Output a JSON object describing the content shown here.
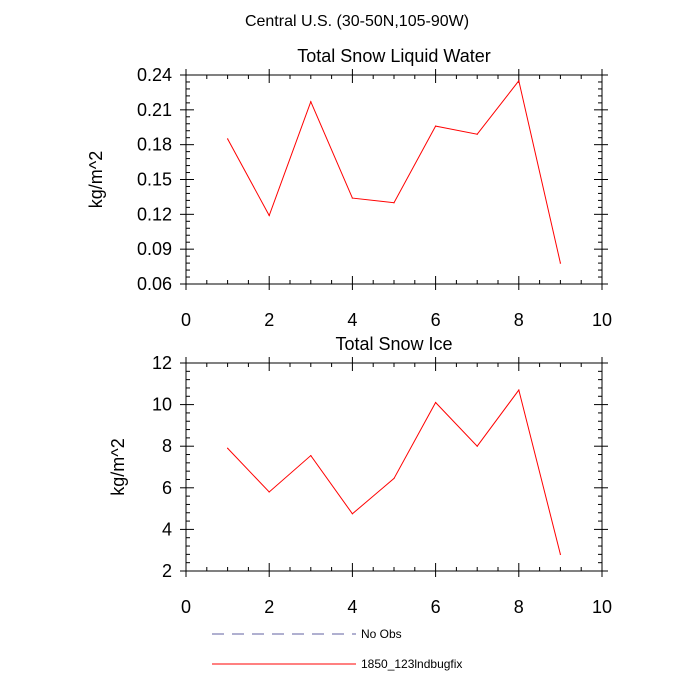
{
  "figure": {
    "suptitle": "Central U.S. (30-50N,105-90W)"
  },
  "chart_data": [
    {
      "type": "line",
      "title": "Total Snow Liquid Water",
      "xlabel": "",
      "ylabel": "kg/m^2",
      "xlim": [
        0,
        10
      ],
      "ylim": [
        0.06,
        0.24
      ],
      "xticks": [
        0,
        2,
        4,
        6,
        8,
        10
      ],
      "xtick_labels": [
        "0",
        "2",
        "4",
        "6",
        "8",
        "10"
      ],
      "yticks": [
        0.06,
        0.09,
        0.12,
        0.15,
        0.18,
        0.21,
        0.24
      ],
      "ytick_labels": [
        "0.06",
        "0.09",
        "0.12",
        "0.15",
        "0.18",
        "0.21",
        "0.24"
      ],
      "series": [
        {
          "name": "1850_123lndbugfix",
          "color": "#ff0000",
          "x": [
            1,
            2,
            3,
            4,
            5,
            6,
            7,
            8,
            9
          ],
          "y": [
            0.185,
            0.119,
            0.217,
            0.134,
            0.13,
            0.196,
            0.189,
            0.235,
            0.078
          ]
        }
      ]
    },
    {
      "type": "line",
      "title": "Total Snow Ice",
      "xlabel": "",
      "ylabel": "kg/m^2",
      "xlim": [
        0,
        10
      ],
      "ylim": [
        2,
        12
      ],
      "xticks": [
        0,
        2,
        4,
        6,
        8,
        10
      ],
      "xtick_labels": [
        "0",
        "2",
        "4",
        "6",
        "8",
        "10"
      ],
      "yticks": [
        2,
        4,
        6,
        8,
        10,
        12
      ],
      "ytick_labels": [
        "2",
        "4",
        "6",
        "8",
        "10",
        "12"
      ],
      "series": [
        {
          "name": "1850_123lndbugfix",
          "color": "#ff0000",
          "x": [
            1,
            2,
            3,
            4,
            5,
            6,
            7,
            8,
            9
          ],
          "y": [
            7.9,
            5.8,
            7.55,
            4.75,
            6.45,
            10.1,
            8.0,
            10.7,
            2.8
          ]
        }
      ]
    }
  ],
  "legend": {
    "items": [
      {
        "label": "No Obs",
        "color": "#6060a0",
        "style": "dashed"
      },
      {
        "label": "1850_123lndbugfix",
        "color": "#ff0000",
        "style": "solid"
      }
    ]
  }
}
